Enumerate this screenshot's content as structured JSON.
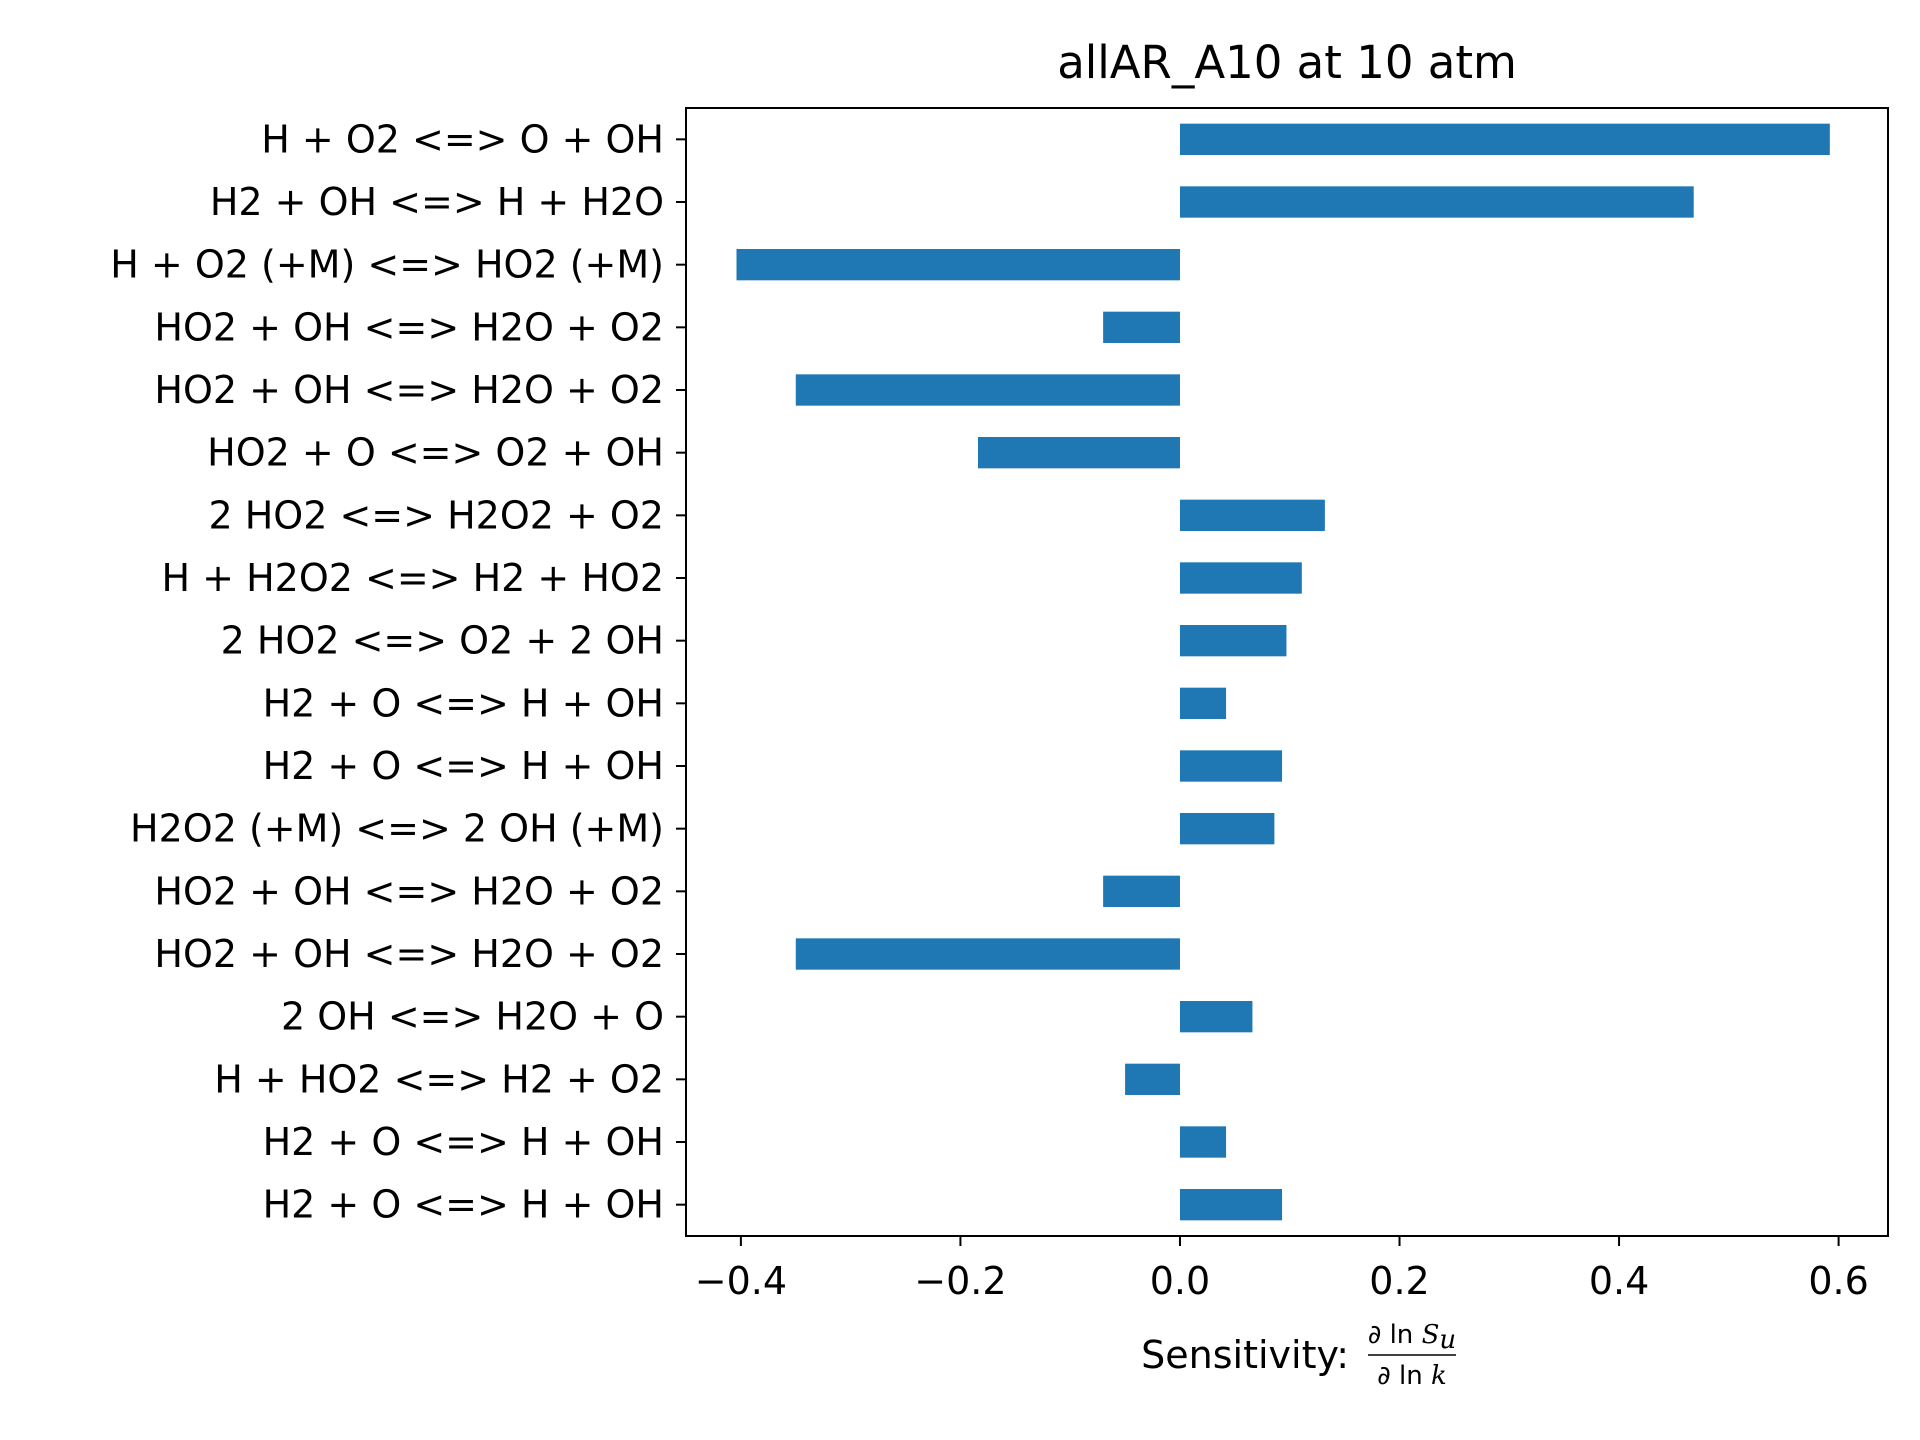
{
  "chart_data": {
    "type": "bar",
    "orientation": "horizontal",
    "title": "allAR_A10 at 10 atm",
    "xlabel": "Sensitivity:",
    "xlabel_fraction": {
      "numerator": [
        "∂",
        "ln",
        "S",
        "u"
      ],
      "denominator": [
        "∂",
        "ln",
        "k"
      ]
    },
    "ylabel": "",
    "xlim": [
      -0.45,
      0.645
    ],
    "xticks": [
      "−0.4",
      "−0.2",
      "0.0",
      "0.2",
      "0.4",
      "0.6"
    ],
    "xtick_values": [
      -0.4,
      -0.2,
      0.0,
      0.2,
      0.4,
      0.6
    ],
    "color": "#1f77b4",
    "grid": false,
    "categories": [
      "H + O2 <=> O + OH",
      "H2 + OH <=> H + H2O",
      "H + O2 (+M) <=> HO2 (+M)",
      "HO2 + OH <=> H2O + O2",
      "HO2 + OH <=> H2O + O2",
      "HO2 + O <=> O2 + OH",
      "2 HO2 <=> H2O2 + O2",
      "H + H2O2 <=> H2 + HO2",
      "2 HO2 <=> O2 + 2 OH",
      "H2 + O <=> H + OH",
      "H2 + O <=> H + OH",
      "H2O2 (+M) <=> 2 OH (+M)",
      "HO2 + OH <=> H2O + O2",
      "HO2 + OH <=> H2O + O2",
      "2 OH <=> H2O + O",
      "H + HO2 <=> H2 + O2",
      "H2 + O <=> H + OH",
      "H2 + O <=> H + OH"
    ],
    "values": [
      0.592,
      0.468,
      -0.404,
      -0.07,
      -0.35,
      -0.184,
      0.132,
      0.111,
      0.097,
      0.042,
      0.093,
      0.086,
      -0.07,
      -0.35,
      0.066,
      -0.05,
      0.042,
      0.093
    ]
  }
}
